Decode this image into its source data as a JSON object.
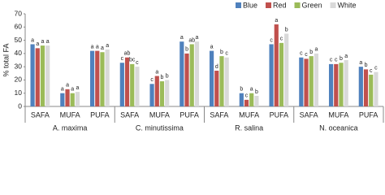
{
  "chart_data": {
    "type": "bar",
    "y_label": "% total FA",
    "ylim": [
      0,
      70
    ],
    "yticks": [
      0,
      10,
      20,
      30,
      40,
      50,
      60,
      70
    ],
    "legend_position": "top-right",
    "groups": [
      "A. maxima",
      "C. minutissima",
      "R. salina",
      "N. oceanica"
    ],
    "categories": [
      "SAFA",
      "MUFA",
      "PUFA",
      "SAFA",
      "MUFA",
      "PUFA",
      "SAFA",
      "MUFA",
      "PUFA",
      "SAFA",
      "MUFA",
      "PUFA"
    ],
    "series": [
      {
        "name": "Blue",
        "color": "#4f81bd",
        "values": [
          47,
          10,
          42,
          33,
          17,
          49,
          42,
          10,
          47,
          37,
          32,
          30
        ],
        "letters": [
          "a",
          "a",
          "a",
          "c",
          "c",
          "a",
          "a",
          "b",
          "c",
          "c",
          "c",
          "a"
        ]
      },
      {
        "name": "Red",
        "color": "#c0504d",
        "values": [
          44,
          13,
          42,
          37,
          23,
          40,
          27,
          5,
          62,
          36,
          32,
          28
        ],
        "letters": [
          "a",
          "a",
          "a",
          "ab",
          "a",
          "b",
          "d",
          "c",
          "a",
          "c",
          "c",
          "b"
        ]
      },
      {
        "name": "Green",
        "color": "#9bbb59",
        "values": [
          46,
          10,
          41,
          32,
          19,
          47,
          38,
          10,
          48,
          38,
          33,
          24
        ],
        "letters": [
          "a",
          "a",
          "a",
          "bc",
          "b",
          "ab",
          "b",
          "a",
          "c",
          "b",
          "b",
          "c"
        ]
      },
      {
        "name": "White",
        "color": "#d9d9d9",
        "values": [
          46,
          11,
          43,
          30,
          20,
          49,
          37,
          8,
          55,
          40,
          35,
          26
        ],
        "letters": [
          "a",
          "a",
          "a",
          "c",
          "b",
          "a",
          "c",
          "b",
          "b",
          "a",
          "a",
          "c"
        ]
      }
    ]
  }
}
